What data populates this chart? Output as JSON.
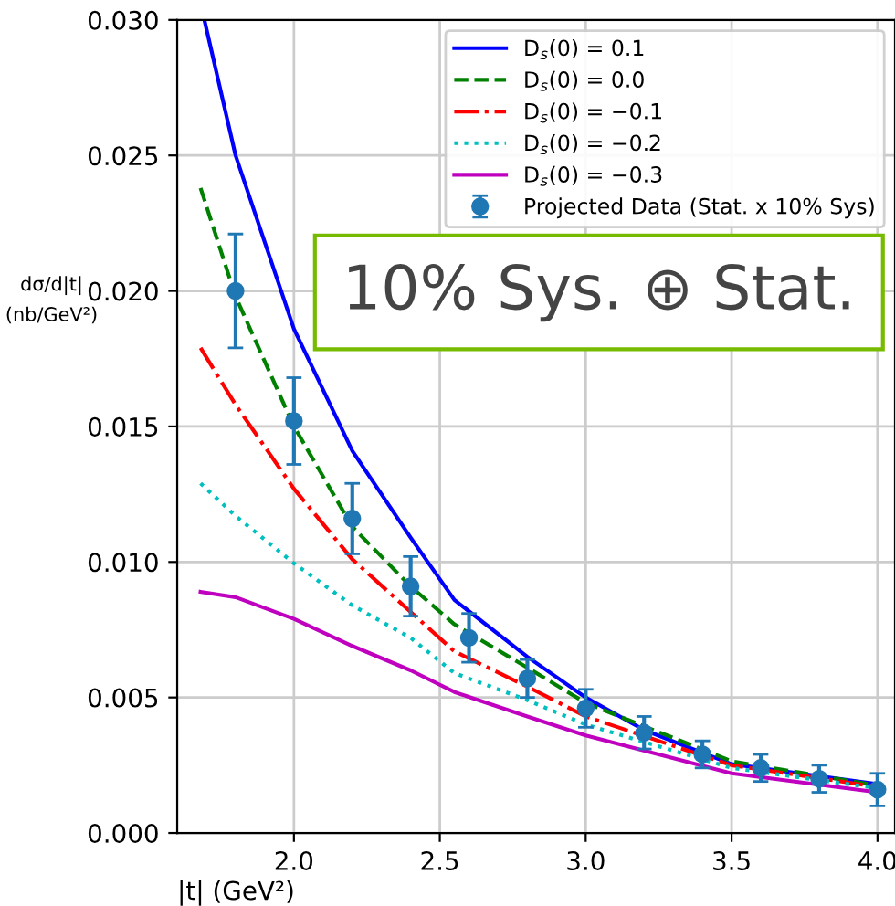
{
  "chart_data": {
    "type": "line",
    "xlabel": "|t| (GeV²)",
    "ylabel": "dσ/d|t|\n(nb/GeV²)",
    "xlim": [
      1.6,
      4.06
    ],
    "ylim": [
      0,
      0.03
    ],
    "xticks": [
      {
        "value": 2.0,
        "label": "2.0"
      },
      {
        "value": 2.5,
        "label": "2.5"
      },
      {
        "value": 3.0,
        "label": "3.0"
      },
      {
        "value": 3.5,
        "label": "3.5"
      },
      {
        "value": 4.0,
        "label": "4.0"
      }
    ],
    "yticks": [
      {
        "value": 0,
        "label": "0.000"
      },
      {
        "value": 0.005,
        "label": "0.005"
      },
      {
        "value": 0.01,
        "label": "0.010"
      },
      {
        "value": 0.015,
        "label": "0.015"
      },
      {
        "value": 0.02,
        "label": "0.020"
      },
      {
        "value": 0.025,
        "label": "0.025"
      },
      {
        "value": 0.03,
        "label": "0.030"
      }
    ],
    "grid": true,
    "legend": "top right",
    "marker": "none",
    "annotations": [
      "10% Sys. ⊕ Stat."
    ],
    "series": [
      {
        "name": "D$_{s}$(0) = 0.1",
        "color": "#0000ff",
        "line_style": "solid",
        "x": [
          1.693,
          1.8,
          2.0,
          2.2,
          2.4,
          2.55,
          2.8,
          3.0,
          3.2,
          3.5,
          3.8,
          4.0
        ],
        "values": [
          0.03,
          0.025,
          0.0186,
          0.0141,
          0.0109,
          0.0086,
          0.0065,
          0.005,
          0.0038,
          0.00254,
          0.0021,
          0.0018
        ]
      },
      {
        "name": "D$_{s}$(0) = 0.0",
        "color": "#008000",
        "line_style": "dashed",
        "x": [
          1.68,
          1.8,
          2.0,
          2.2,
          2.4,
          2.55,
          2.8,
          3.0,
          3.5,
          4.0
        ],
        "values": [
          0.0238,
          0.0198,
          0.015,
          0.0113,
          0.0091,
          0.0077,
          0.0061,
          0.0048,
          0.00265,
          0.00175
        ]
      },
      {
        "name": "D$_{s}$(0) = −0.1",
        "color": "#ff0000",
        "line_style": "dashdot",
        "x": [
          1.68,
          1.8,
          2.0,
          2.2,
          2.55,
          2.8,
          3.0,
          3.5,
          4.0
        ],
        "values": [
          0.0179,
          0.0158,
          0.0127,
          0.0101,
          0.0067,
          0.0054,
          0.0043,
          0.0025,
          0.0017
        ]
      },
      {
        "name": "D$_{s}$(0) = −0.2",
        "color": "#00bfbf",
        "line_style": "dotted",
        "x": [
          1.68,
          1.8,
          2.0,
          2.2,
          2.4,
          2.55,
          2.8,
          3.0,
          3.5,
          4.0
        ],
        "values": [
          0.0129,
          0.0117,
          0.00995,
          0.0084,
          0.0072,
          0.0059,
          0.0049,
          0.004,
          0.0024,
          0.00165
        ]
      },
      {
        "name": "D$_{s}$(0) = −0.3",
        "color": "#bf00bf",
        "line_style": "solid",
        "x": [
          1.68,
          1.8,
          2.0,
          2.2,
          2.4,
          2.55,
          2.8,
          3.0,
          3.5,
          4.0
        ],
        "values": [
          0.0089,
          0.0087,
          0.0079,
          0.0069,
          0.006,
          0.0052,
          0.0043,
          0.0036,
          0.0022,
          0.0015
        ]
      },
      {
        "name": "Projected Data (Stat. x 10% Sys)",
        "type": "scatter",
        "marker": "circle",
        "color": "#1f77b4",
        "x": [
          1.8,
          2.0,
          2.2,
          2.4,
          2.6,
          2.8,
          3.0,
          3.2,
          3.4,
          3.6,
          3.8,
          4.0
        ],
        "values": [
          0.02,
          0.0152,
          0.0116,
          0.0091,
          0.0072,
          0.0057,
          0.0046,
          0.0037,
          0.0029,
          0.0024,
          0.002,
          0.0016
        ],
        "errors": [
          0.0021,
          0.0016,
          0.0013,
          0.0011,
          0.0009,
          0.0007,
          0.0007,
          0.0006,
          0.0005,
          0.0005,
          0.0005,
          0.0006
        ]
      }
    ]
  }
}
